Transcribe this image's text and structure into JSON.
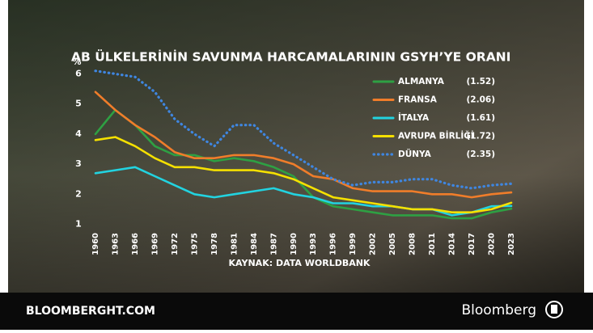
{
  "chart_data": {
    "type": "line",
    "title": "AB ÜLKELERİNİN SAVUNMA HARCAMALARININ GSYH’YE ORANI",
    "y_label": "%",
    "source": "KAYNAK: DATA WORLDBANK",
    "x": [
      1960,
      1963,
      1966,
      1969,
      1972,
      1975,
      1978,
      1981,
      1984,
      1987,
      1990,
      1993,
      1996,
      1999,
      2002,
      2005,
      2008,
      2011,
      2014,
      2017,
      2020,
      2023
    ],
    "xlim": [
      1960,
      2023
    ],
    "xticks": [
      1960,
      1963,
      1966,
      1969,
      1972,
      1975,
      1978,
      1981,
      1984,
      1987,
      1990,
      1993,
      1996,
      1999,
      2002,
      2005,
      2008,
      2011,
      2014,
      2017,
      2020,
      2023
    ],
    "ylim": [
      0.8,
      6.2
    ],
    "yticks": [
      1,
      2,
      3,
      4,
      5,
      6
    ],
    "grid": false,
    "legend": "upper right",
    "series": [
      {
        "name": "ALMANYA",
        "label": "(1.52)",
        "color": "#2ea043",
        "style": "solid",
        "values": [
          4.0,
          4.8,
          4.3,
          3.6,
          3.3,
          3.3,
          3.1,
          3.2,
          3.1,
          2.9,
          2.6,
          1.9,
          1.6,
          1.5,
          1.4,
          1.3,
          1.3,
          1.3,
          1.2,
          1.2,
          1.4,
          1.52
        ]
      },
      {
        "name": "FRANSA",
        "label": "(2.06)",
        "color": "#f07d2a",
        "style": "solid",
        "values": [
          5.4,
          4.8,
          4.3,
          3.9,
          3.4,
          3.2,
          3.2,
          3.3,
          3.3,
          3.2,
          3.0,
          2.6,
          2.5,
          2.2,
          2.1,
          2.1,
          2.1,
          2.0,
          2.0,
          1.9,
          2.0,
          2.06
        ]
      },
      {
        "name": "İTALYA",
        "label": "(1.61)",
        "color": "#22d3e0",
        "style": "solid",
        "values": [
          2.7,
          2.8,
          2.9,
          2.6,
          2.3,
          2.0,
          1.9,
          2.0,
          2.1,
          2.2,
          2.0,
          1.9,
          1.7,
          1.7,
          1.6,
          1.6,
          1.5,
          1.5,
          1.3,
          1.4,
          1.6,
          1.61
        ]
      },
      {
        "name": "AVRUPA BİRLİĞİ",
        "label": "(1.72)",
        "color": "#f5e000",
        "style": "solid",
        "values": [
          3.8,
          3.9,
          3.6,
          3.2,
          2.9,
          2.9,
          2.8,
          2.8,
          2.8,
          2.7,
          2.5,
          2.2,
          1.9,
          1.8,
          1.7,
          1.6,
          1.5,
          1.5,
          1.4,
          1.4,
          1.5,
          1.72
        ]
      },
      {
        "name": "DÜNYA",
        "label": "(2.35)",
        "color": "#3f86e0",
        "style": "dotted",
        "values": [
          6.1,
          6.0,
          5.9,
          5.4,
          4.5,
          4.0,
          3.6,
          4.3,
          4.3,
          3.7,
          3.3,
          2.9,
          2.5,
          2.3,
          2.4,
          2.4,
          2.5,
          2.5,
          2.3,
          2.2,
          2.3,
          2.35
        ]
      }
    ]
  },
  "footer": {
    "site": "BLOOMBERGHT.COM",
    "brand": "Bloomberg"
  }
}
